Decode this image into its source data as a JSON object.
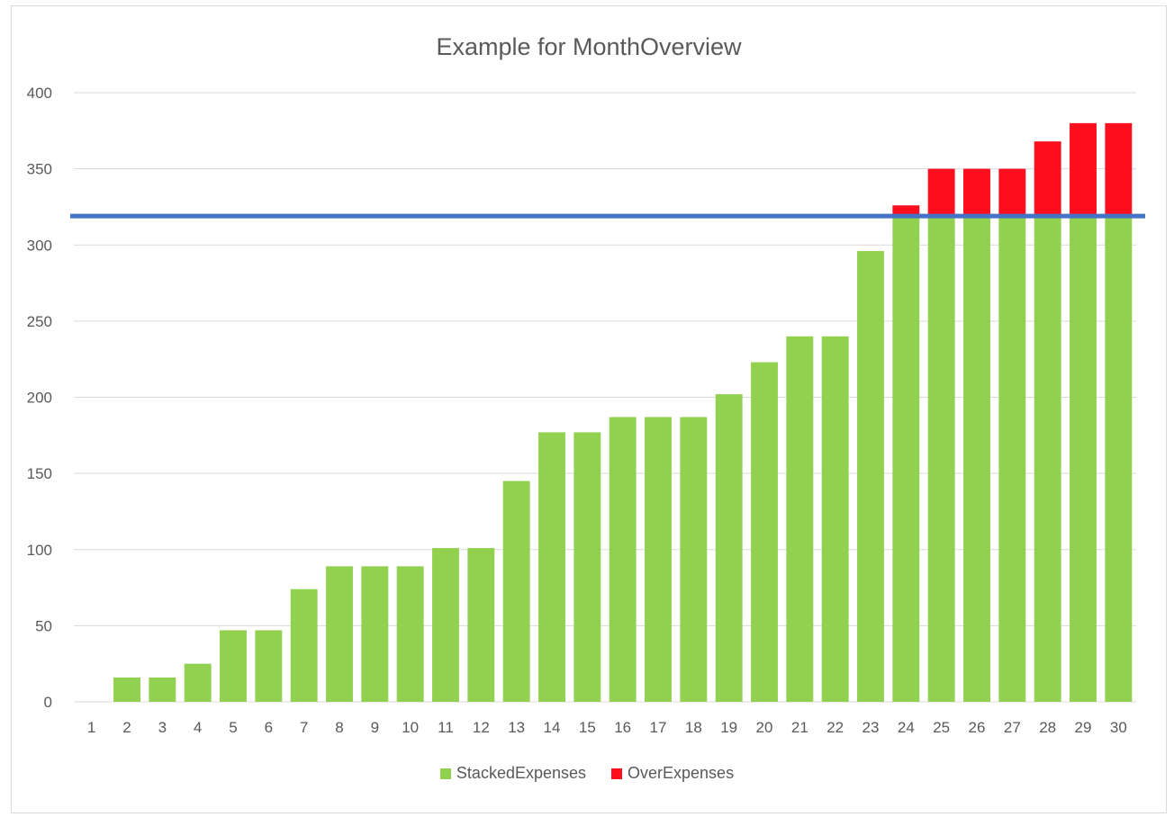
{
  "chart_data": {
    "type": "bar",
    "stacked": true,
    "title": "Example for MonthOverview",
    "xlabel": "",
    "ylabel": "",
    "ylim": [
      0,
      400
    ],
    "yticks": [
      "0",
      "50",
      "100",
      "150",
      "200",
      "250",
      "300",
      "350",
      "400"
    ],
    "grid": true,
    "legend_position": "bottom",
    "categories": [
      "1",
      "2",
      "3",
      "4",
      "5",
      "6",
      "7",
      "8",
      "9",
      "10",
      "11",
      "12",
      "13",
      "14",
      "15",
      "16",
      "17",
      "18",
      "19",
      "20",
      "21",
      "22",
      "23",
      "24",
      "25",
      "26",
      "27",
      "28",
      "29",
      "30"
    ],
    "series": [
      {
        "name": "StackedExpenses",
        "color": "#92d050",
        "values": [
          0,
          16,
          16,
          25,
          47,
          47,
          74,
          89,
          89,
          89,
          101,
          101,
          145,
          177,
          177,
          187,
          187,
          187,
          202,
          223,
          240,
          240,
          296,
          320,
          320,
          320,
          320,
          320,
          320,
          320
        ]
      },
      {
        "name": "OverExpenses",
        "color": "#ff0e1e",
        "values": [
          0,
          0,
          0,
          0,
          0,
          0,
          0,
          0,
          0,
          0,
          0,
          0,
          0,
          0,
          0,
          0,
          0,
          0,
          0,
          0,
          0,
          0,
          0,
          6,
          30,
          30,
          30,
          48,
          60,
          60
        ]
      }
    ],
    "reference_line": {
      "value": 319,
      "color": "#4472c4"
    }
  }
}
